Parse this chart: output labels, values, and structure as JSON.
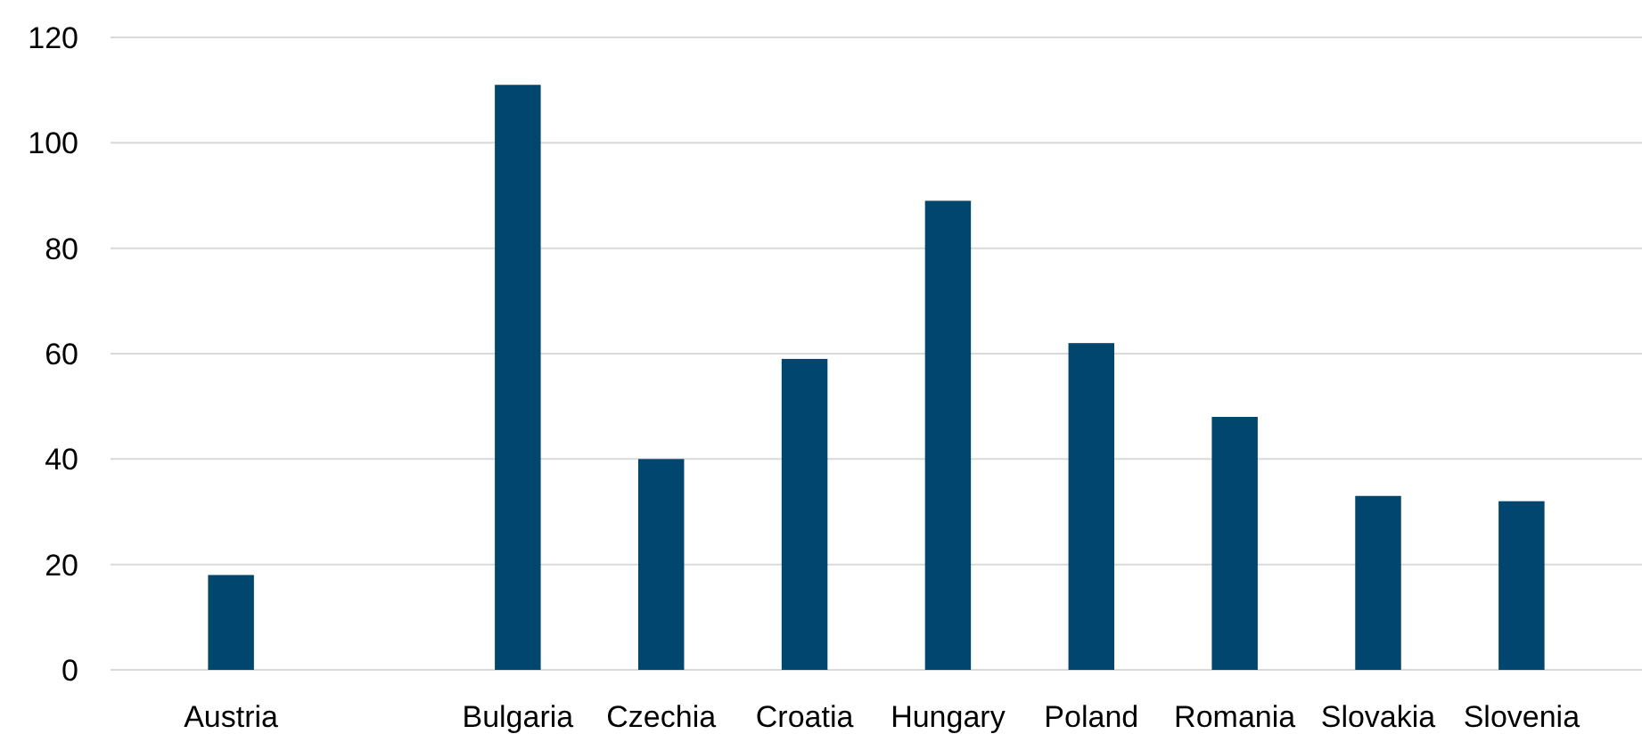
{
  "chart_data": {
    "type": "bar",
    "categories": [
      "Austria",
      null,
      "Bulgaria",
      "Czechia",
      "Croatia",
      "Hungary",
      "Poland",
      "Romania",
      "Slovakia",
      "Slovenia"
    ],
    "values": [
      18,
      null,
      111,
      40,
      59,
      89,
      62,
      48,
      33,
      32
    ],
    "color": "#00466f",
    "ylim": [
      0,
      120
    ],
    "yticks": [
      0,
      20,
      40,
      60,
      80,
      100,
      120
    ],
    "grid": "y"
  }
}
